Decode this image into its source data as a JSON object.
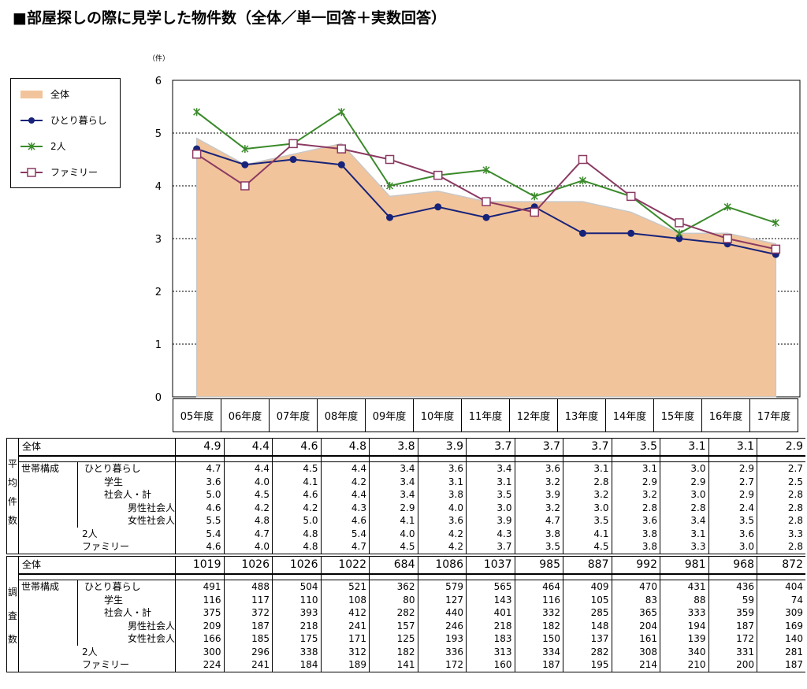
{
  "page_title": "■部屋探しの際に見学した物件数（全体／単一回答＋実数回答）",
  "unit_label": "（件）",
  "legend": [
    {
      "name": "全体",
      "kind": "area",
      "color": "#f2c49b"
    },
    {
      "name": "ひとり暮らし",
      "kind": "line-dot",
      "color": "#17237a"
    },
    {
      "name": "2人",
      "kind": "line-x",
      "color": "#3a8a2a"
    },
    {
      "name": "ファミリー",
      "kind": "line-square",
      "color": "#8b3a62"
    }
  ],
  "chart_data": {
    "type": "line",
    "title": "部屋探しの際に見学した物件数（全体／単一回答＋実数回答）",
    "xlabel": "",
    "ylabel": "（件）",
    "ylim": [
      0,
      6
    ],
    "yticks": [
      0,
      1,
      2,
      3,
      4,
      5,
      6
    ],
    "grid": true,
    "legend_position": "top-left",
    "categories": [
      "05年度",
      "06年度",
      "07年度",
      "08年度",
      "09年度",
      "10年度",
      "11年度",
      "12年度",
      "13年度",
      "14年度",
      "15年度",
      "16年度",
      "17年度"
    ],
    "series": [
      {
        "name": "全体",
        "type": "area",
        "color": "#f2c49b",
        "values": [
          4.9,
          4.4,
          4.6,
          4.8,
          3.8,
          3.9,
          3.7,
          3.7,
          3.7,
          3.5,
          3.1,
          3.1,
          2.9
        ]
      },
      {
        "name": "ひとり暮らし",
        "type": "line",
        "marker": "circle",
        "color": "#17237a",
        "values": [
          4.7,
          4.4,
          4.5,
          4.4,
          3.4,
          3.6,
          3.4,
          3.6,
          3.1,
          3.1,
          3.0,
          2.9,
          2.7
        ]
      },
      {
        "name": "2人",
        "type": "line",
        "marker": "x",
        "color": "#3a8a2a",
        "values": [
          5.4,
          4.7,
          4.8,
          5.4,
          4.0,
          4.2,
          4.3,
          3.8,
          4.1,
          3.8,
          3.1,
          3.6,
          3.3
        ]
      },
      {
        "name": "ファミリー",
        "type": "line",
        "marker": "square",
        "color": "#8b3a62",
        "values": [
          4.6,
          4.0,
          4.8,
          4.7,
          4.5,
          4.2,
          3.7,
          3.5,
          4.5,
          3.8,
          3.3,
          3.0,
          2.8
        ]
      }
    ]
  },
  "tables": {
    "avg": {
      "section_label": "平均件数",
      "total_label": "全体",
      "total_values": [
        "4.9",
        "4.4",
        "4.6",
        "4.8",
        "3.8",
        "3.9",
        "3.7",
        "3.7",
        "3.7",
        "3.5",
        "3.1",
        "3.1",
        "2.9"
      ],
      "group_label": "世帯構成別",
      "rows": [
        {
          "label": "ひとり暮らし",
          "indent": 0,
          "values": [
            "4.7",
            "4.4",
            "4.5",
            "4.4",
            "3.4",
            "3.6",
            "3.4",
            "3.6",
            "3.1",
            "3.1",
            "3.0",
            "2.9",
            "2.7"
          ]
        },
        {
          "label": "学生",
          "indent": 1,
          "values": [
            "3.6",
            "4.0",
            "4.1",
            "4.2",
            "3.4",
            "3.1",
            "3.1",
            "3.2",
            "2.8",
            "2.9",
            "2.9",
            "2.7",
            "2.5"
          ]
        },
        {
          "label": "社会人・計",
          "indent": 2,
          "values": [
            "5.0",
            "4.5",
            "4.6",
            "4.4",
            "3.4",
            "3.8",
            "3.5",
            "3.9",
            "3.2",
            "3.2",
            "3.0",
            "2.9",
            "2.8"
          ]
        },
        {
          "label": "男性社会人",
          "indent": 3,
          "values": [
            "4.6",
            "4.2",
            "4.2",
            "4.3",
            "2.9",
            "4.0",
            "3.0",
            "3.2",
            "3.0",
            "2.8",
            "2.8",
            "2.4",
            "2.8"
          ]
        },
        {
          "label": "女性社会人",
          "indent": 3,
          "values": [
            "5.5",
            "4.8",
            "5.0",
            "4.6",
            "4.1",
            "3.6",
            "3.9",
            "4.7",
            "3.5",
            "3.6",
            "3.4",
            "3.5",
            "2.8"
          ]
        },
        {
          "label": "2人",
          "indent": -1,
          "values": [
            "5.4",
            "4.7",
            "4.8",
            "5.4",
            "4.0",
            "4.2",
            "4.3",
            "3.8",
            "4.1",
            "3.8",
            "3.1",
            "3.6",
            "3.3"
          ]
        },
        {
          "label": "ファミリー",
          "indent": -1,
          "values": [
            "4.6",
            "4.0",
            "4.8",
            "4.7",
            "4.5",
            "4.2",
            "3.7",
            "3.5",
            "4.5",
            "3.8",
            "3.3",
            "3.0",
            "2.8"
          ]
        }
      ]
    },
    "count": {
      "section_label": "調査数",
      "total_label": "全体",
      "total_values": [
        "1019",
        "1026",
        "1026",
        "1022",
        "684",
        "1086",
        "1037",
        "985",
        "887",
        "992",
        "981",
        "968",
        "872"
      ],
      "group_label": "世帯構成別",
      "rows": [
        {
          "label": "ひとり暮らし",
          "indent": 0,
          "values": [
            "491",
            "488",
            "504",
            "521",
            "362",
            "579",
            "565",
            "464",
            "409",
            "470",
            "431",
            "436",
            "404"
          ]
        },
        {
          "label": "学生",
          "indent": 1,
          "values": [
            "116",
            "117",
            "110",
            "108",
            "80",
            "127",
            "143",
            "116",
            "105",
            "83",
            "88",
            "59",
            "74"
          ]
        },
        {
          "label": "社会人・計",
          "indent": 2,
          "values": [
            "375",
            "372",
            "393",
            "412",
            "282",
            "440",
            "401",
            "332",
            "285",
            "365",
            "333",
            "359",
            "309"
          ]
        },
        {
          "label": "男性社会人",
          "indent": 3,
          "values": [
            "209",
            "187",
            "218",
            "241",
            "157",
            "246",
            "218",
            "182",
            "148",
            "204",
            "194",
            "187",
            "169"
          ]
        },
        {
          "label": "女性社会人",
          "indent": 3,
          "values": [
            "166",
            "185",
            "175",
            "171",
            "125",
            "193",
            "183",
            "150",
            "137",
            "161",
            "139",
            "172",
            "140"
          ]
        },
        {
          "label": "2人",
          "indent": -1,
          "values": [
            "300",
            "296",
            "338",
            "312",
            "182",
            "336",
            "313",
            "334",
            "282",
            "308",
            "340",
            "331",
            "281"
          ]
        },
        {
          "label": "ファミリー",
          "indent": -1,
          "values": [
            "224",
            "241",
            "184",
            "189",
            "141",
            "172",
            "160",
            "187",
            "195",
            "214",
            "210",
            "200",
            "187"
          ]
        }
      ]
    }
  }
}
